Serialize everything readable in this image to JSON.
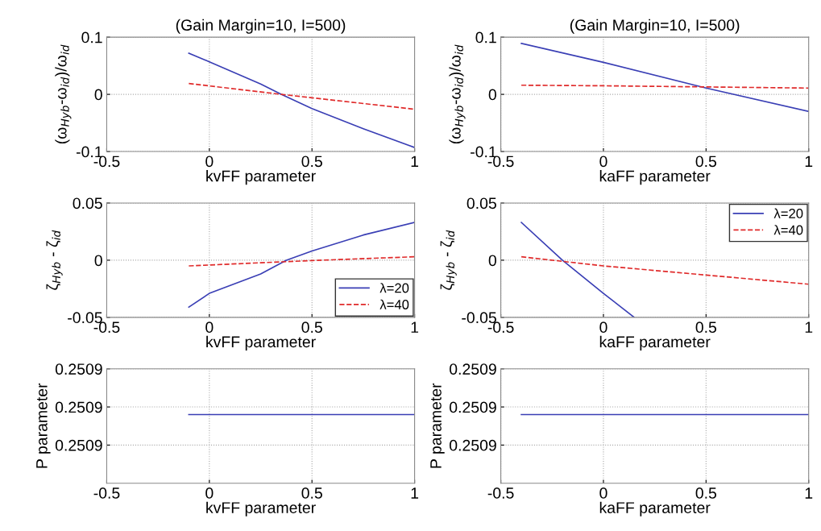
{
  "chart_data": [
    {
      "type": "line",
      "title": "(Gain Margin=10, I=500)",
      "xlabel": "kvFF parameter",
      "ylabel": "(ω$_{Hyb}$-ω$_{id}$)/ω$_{id}$",
      "xlim": [
        -0.5,
        1
      ],
      "xticks": [
        -0.5,
        0,
        0.5,
        1
      ],
      "ylim": [
        -0.1,
        0.1
      ],
      "yticks": [
        -0.1,
        0,
        0.1
      ],
      "grid": true,
      "series": [
        {
          "color": "#3a3fb5",
          "line_style": "solid",
          "x": [
            -0.1,
            0,
            0.25,
            0.35,
            0.5,
            0.75,
            1
          ],
          "values": [
            0.072,
            0.057,
            0.018,
            0,
            -0.025,
            -0.06,
            -0.093
          ]
        },
        {
          "color": "#e02a2a",
          "line_style": "dashed",
          "x": [
            -0.1,
            0.35,
            0.5,
            1
          ],
          "values": [
            0.019,
            0,
            -0.006,
            -0.026
          ]
        }
      ]
    },
    {
      "type": "line",
      "title": "(Gain Margin=10, I=500)",
      "xlabel": "kaFF parameter",
      "ylabel": "(ω$_{Hyb}$-ω$_{id}$)/ω$_{id}$",
      "xlim": [
        -0.5,
        1
      ],
      "xticks": [
        -0.5,
        0,
        0.5,
        1
      ],
      "ylim": [
        -0.1,
        0.1
      ],
      "yticks": [
        -0.1,
        0,
        0.1
      ],
      "grid": true,
      "series": [
        {
          "color": "#3a3fb5",
          "line_style": "solid",
          "x": [
            -0.4,
            0,
            0.5,
            1
          ],
          "values": [
            0.089,
            0.056,
            0.011,
            -0.03
          ]
        },
        {
          "color": "#e02a2a",
          "line_style": "dashed",
          "x": [
            -0.4,
            0,
            0.5,
            1
          ],
          "values": [
            0.016,
            0.015,
            0.013,
            0.011
          ]
        }
      ]
    },
    {
      "type": "line",
      "xlabel": "kvFF parameter",
      "ylabel": "ζ$_{Hyb}$ - ζ$_{id}$",
      "xlim": [
        -0.5,
        1
      ],
      "xticks": [
        -0.5,
        0,
        0.5,
        1
      ],
      "ylim": [
        -0.05,
        0.05
      ],
      "yticks": [
        -0.05,
        0,
        0.05
      ],
      "grid": true,
      "legend": "bottom right",
      "series": [
        {
          "name": "λ=20",
          "color": "#3a3fb5",
          "line_style": "solid",
          "x": [
            -0.1,
            0,
            0.25,
            0.375,
            0.5,
            0.75,
            1
          ],
          "values": [
            -0.041,
            -0.029,
            -0.012,
            0,
            0.008,
            0.022,
            0.033
          ]
        },
        {
          "name": "λ=40",
          "color": "#e02a2a",
          "line_style": "dashed",
          "x": [
            -0.1,
            0.5,
            1
          ],
          "values": [
            -0.005,
            -0.0003,
            0.003
          ]
        }
      ]
    },
    {
      "type": "line",
      "xlabel": "kaFF parameter",
      "ylabel": "ζ$_{Hyb}$ - ζ$_{id}$",
      "xlim": [
        -0.5,
        1
      ],
      "xticks": [
        -0.5,
        0,
        0.5,
        1
      ],
      "ylim": [
        -0.05,
        0.05
      ],
      "yticks": [
        -0.05,
        0,
        0.05
      ],
      "grid": true,
      "legend": "top right",
      "series": [
        {
          "name": "λ=20",
          "color": "#3a3fb5",
          "line_style": "solid",
          "x": [
            -0.4,
            -0.2,
            0,
            0.15
          ],
          "values": [
            0.033,
            0,
            -0.029,
            -0.05
          ]
        },
        {
          "name": "λ=40",
          "color": "#e02a2a",
          "line_style": "dashed",
          "x": [
            -0.4,
            0,
            0.5,
            1
          ],
          "values": [
            0.003,
            -0.005,
            -0.013,
            -0.021
          ]
        }
      ]
    },
    {
      "type": "line",
      "xlabel": "kvFF parameter",
      "ylabel": "P parameter",
      "xlim": [
        -0.5,
        1
      ],
      "xticks": [
        -0.5,
        0,
        0.5,
        1
      ],
      "ylim": [
        0.25087,
        0.2509
      ],
      "yticks": [
        {
          "value": 0.25088,
          "label": "0.2509"
        },
        {
          "value": 0.25089,
          "label": "0.2509"
        },
        {
          "value": 0.2509,
          "label": "0.2509"
        }
      ],
      "grid": true,
      "series": [
        {
          "color": "#3a3fb5",
          "line_style": "solid",
          "x": [
            -0.1,
            1
          ],
          "values": [
            0.250888,
            0.250888
          ]
        }
      ]
    },
    {
      "type": "line",
      "xlabel": "kaFF parameter",
      "ylabel": "P parameter",
      "xlim": [
        -0.5,
        1
      ],
      "xticks": [
        -0.5,
        0,
        0.5,
        1
      ],
      "ylim": [
        0.25087,
        0.2509
      ],
      "yticks": [
        {
          "value": 0.25088,
          "label": "0.2509"
        },
        {
          "value": 0.25089,
          "label": "0.2509"
        },
        {
          "value": 0.2509,
          "label": "0.2509"
        }
      ],
      "grid": true,
      "series": [
        {
          "color": "#3a3fb5",
          "line_style": "solid",
          "x": [
            -0.4,
            1
          ],
          "values": [
            0.250888,
            0.250888
          ]
        }
      ]
    }
  ]
}
